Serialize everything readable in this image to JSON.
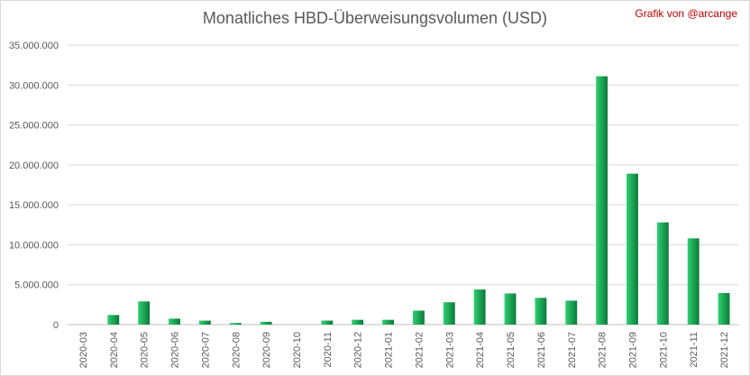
{
  "chart_data": {
    "type": "bar",
    "title": "Monatliches HBD-Überweisungsvolumen (USD)",
    "credit": "Grafik von @arcange",
    "categories": [
      "2020-03",
      "2020-04",
      "2020-05",
      "2020-06",
      "2020-07",
      "2020-08",
      "2020-09",
      "2020-10",
      "2020-11",
      "2020-12",
      "2021-01",
      "2021-02",
      "2021-03",
      "2021-04",
      "2021-05",
      "2021-06",
      "2021-07",
      "2021-08",
      "2021-09",
      "2021-10",
      "2021-11",
      "2021-12"
    ],
    "values": [
      0,
      1200000,
      2900000,
      750000,
      500000,
      200000,
      350000,
      0,
      500000,
      600000,
      600000,
      1750000,
      2800000,
      4400000,
      3900000,
      3350000,
      3000000,
      31100000,
      18900000,
      12800000,
      10800000,
      3950000
    ],
    "y_ticks": [
      "0",
      "5.000.000",
      "10.000.000",
      "15.000.000",
      "20.000.000",
      "25.000.000",
      "30.000.000",
      "35.000.000"
    ],
    "ylim": [
      0,
      35000000
    ],
    "grid": true,
    "bar_color_light": "#2fd070",
    "bar_color_dark": "#0a7a3a",
    "xlabel": "",
    "ylabel": ""
  }
}
